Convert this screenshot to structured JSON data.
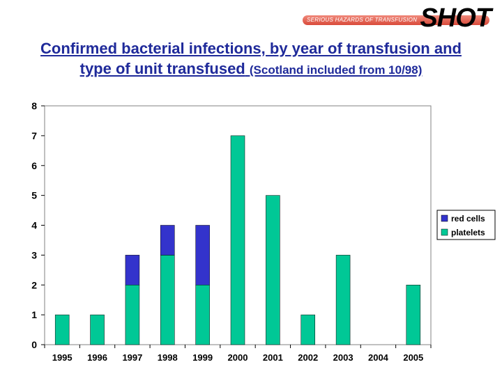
{
  "logo": {
    "main": "SHOT",
    "subtitle": "SERIOUS HAZARDS OF TRANSFUSION"
  },
  "title": {
    "line1": "Confirmed bacterial infections, by year of transfusion and",
    "line2_main": "type of unit transfused",
    "line2_note": "(Scotland included from 10/98)"
  },
  "chart_data": {
    "type": "bar",
    "stacked": true,
    "categories": [
      "1995",
      "1996",
      "1997",
      "1998",
      "1999",
      "2000",
      "2001",
      "2002",
      "2003",
      "2004",
      "2005"
    ],
    "series": [
      {
        "name": "platelets",
        "color": "#00c896",
        "values": [
          1,
          1,
          2,
          3,
          2,
          7,
          5,
          1,
          3,
          0,
          2
        ]
      },
      {
        "name": "red cells",
        "color": "#3333cc",
        "values": [
          0,
          0,
          1,
          1,
          2,
          0,
          0,
          0,
          0,
          0,
          0
        ]
      }
    ],
    "ylim": [
      0,
      8
    ],
    "yticks": [
      "0",
      "1",
      "2",
      "3",
      "4",
      "5",
      "6",
      "7",
      "8"
    ],
    "grid": false,
    "legend": {
      "placement": "right",
      "entries": [
        "red cells",
        "platelets"
      ]
    }
  }
}
